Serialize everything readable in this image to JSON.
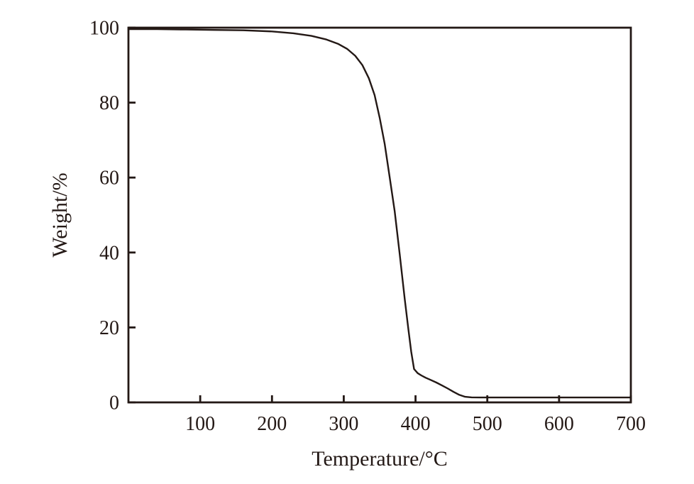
{
  "figure": {
    "background_color": "#ffffff",
    "line_color": "#231815",
    "title": ""
  },
  "chart_data": {
    "type": "line",
    "title": "",
    "xlabel": "Temperature/°C",
    "ylabel": "Weight/%",
    "xlim": [
      0,
      700
    ],
    "ylim": [
      0,
      100
    ],
    "x_ticks": [
      100,
      200,
      300,
      400,
      500,
      600,
      700
    ],
    "y_ticks": [
      0,
      20,
      40,
      60,
      80,
      100
    ],
    "grid": false,
    "legend": false,
    "line_color": "#231815",
    "x": [
      0,
      40,
      80,
      120,
      160,
      200,
      230,
      255,
      275,
      292,
      305,
      316,
      326,
      335,
      343,
      350,
      357,
      364,
      371,
      378,
      385,
      390,
      394,
      398,
      403,
      408,
      414,
      421,
      429,
      437,
      445,
      453,
      461,
      469,
      478,
      490,
      510,
      540,
      580,
      620,
      660,
      700
    ],
    "y": [
      99.6,
      99.6,
      99.5,
      99.4,
      99.3,
      99.0,
      98.5,
      97.8,
      96.9,
      95.7,
      94.3,
      92.5,
      90.0,
      86.5,
      82.0,
      76.0,
      69.0,
      60.0,
      51.0,
      39.5,
      27.5,
      19.5,
      13.5,
      8.9,
      7.8,
      7.2,
      6.6,
      6.0,
      5.3,
      4.5,
      3.7,
      2.8,
      2.0,
      1.5,
      1.35,
      1.3,
      1.3,
      1.3,
      1.3,
      1.3,
      1.3,
      1.3
    ]
  }
}
